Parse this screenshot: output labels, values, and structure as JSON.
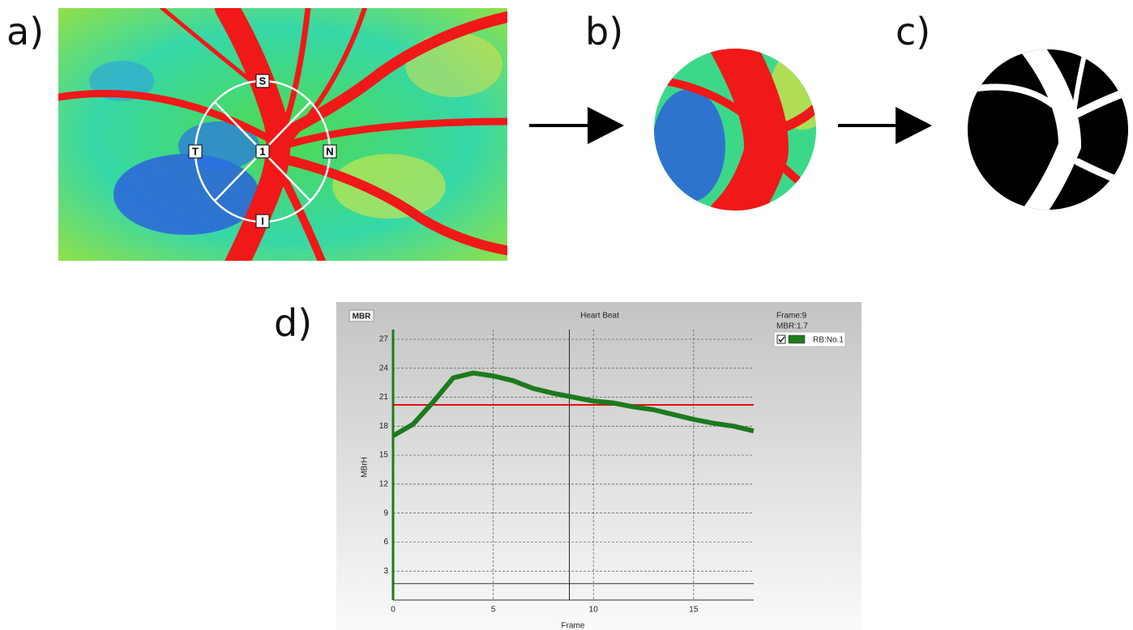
{
  "panels": {
    "a": {
      "label": "a)",
      "markers": [
        "S",
        "T",
        "N",
        "I",
        "1"
      ]
    },
    "b": {
      "label": "b)"
    },
    "c": {
      "label": "c)"
    },
    "d": {
      "label": "d)"
    }
  },
  "chart_data": {
    "type": "line",
    "title": "Heart Beat",
    "corner_label": "MBR",
    "x_label": "Frame",
    "y_label": "MBrH",
    "annotations": [
      "Frame:9",
      "MBR:1.7"
    ],
    "x": [
      0,
      1,
      2,
      3,
      4,
      5,
      6,
      7,
      8,
      9,
      10,
      11,
      12,
      13,
      14,
      15,
      16,
      17,
      18
    ],
    "series": [
      {
        "name": "RB:No.1",
        "color": "#1e7a1e",
        "values": [
          17,
          18.2,
          20.5,
          23,
          23.5,
          23.2,
          22.7,
          21.9,
          21.4,
          21,
          20.6,
          20.4,
          20,
          19.7,
          19.2,
          18.7,
          18.3,
          18,
          17.5
        ]
      }
    ],
    "hlines": [
      {
        "value": 20.2,
        "color": "#e01010"
      },
      {
        "value": 1.7,
        "color": "#333333"
      }
    ],
    "cursor_x": 8.8,
    "xlim": [
      0,
      18
    ],
    "xticks": [
      0,
      5,
      10,
      15
    ],
    "ylim": [
      0,
      28
    ],
    "yticks": [
      3,
      6,
      9,
      12,
      15,
      18,
      21,
      24,
      27
    ],
    "grid": true
  }
}
